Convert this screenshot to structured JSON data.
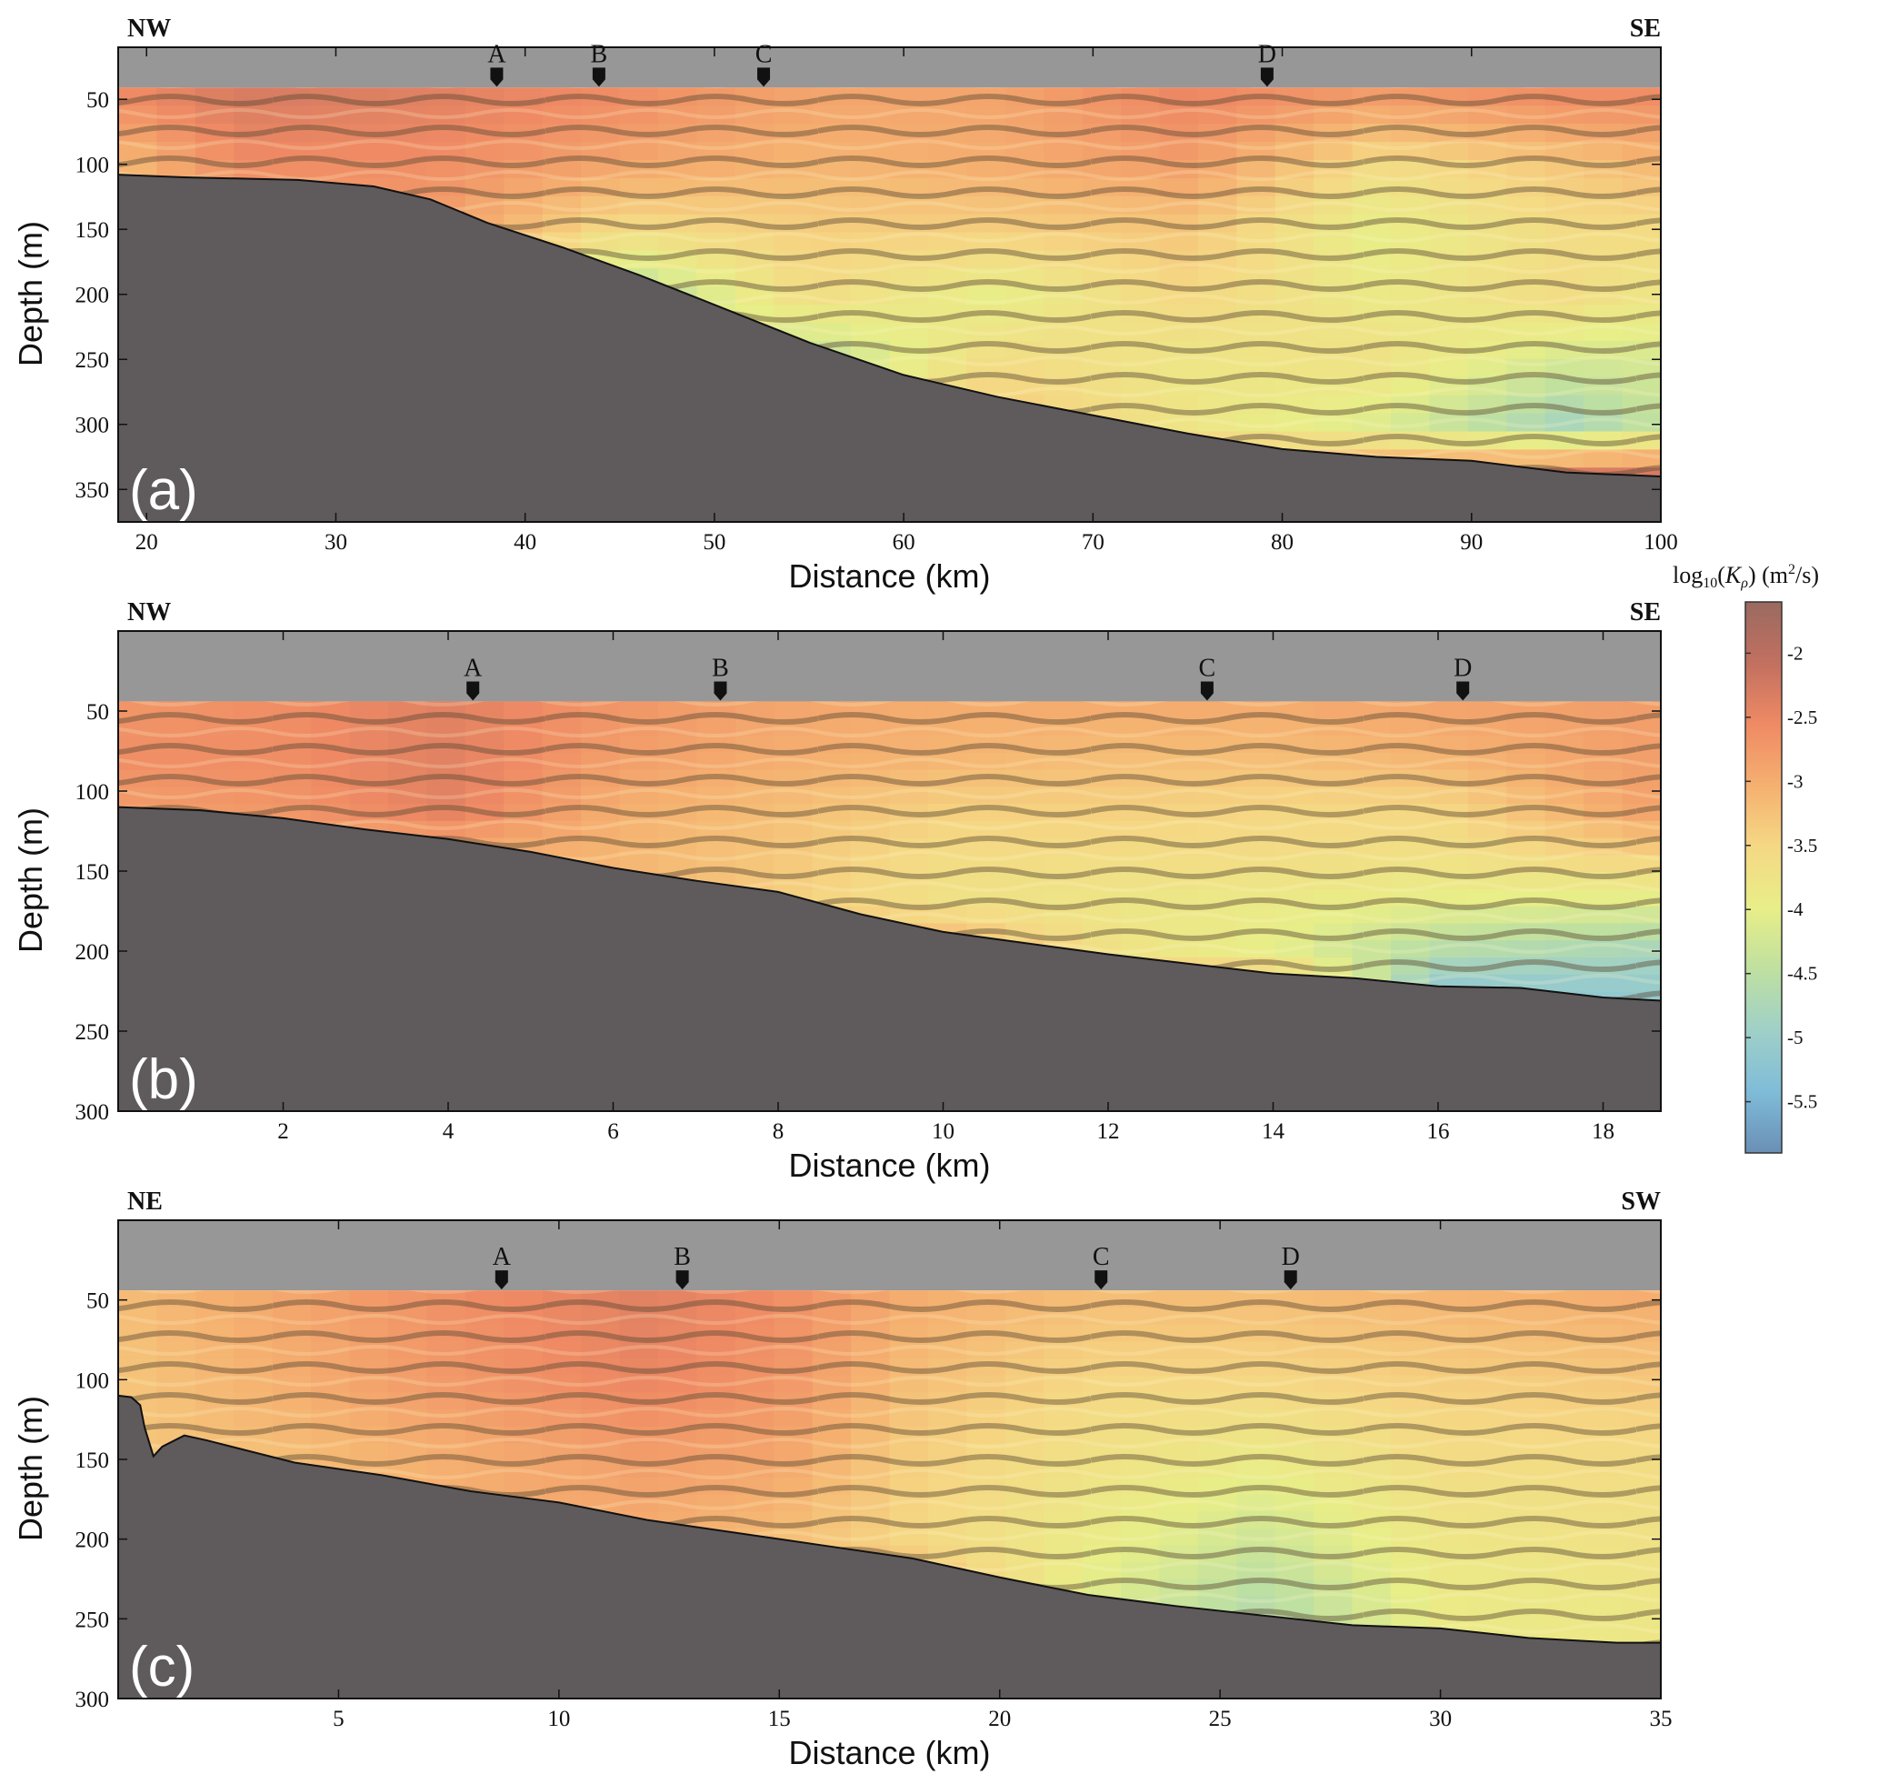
{
  "chart_data": [
    {
      "type": "heatmap",
      "panel_label": "(a)",
      "left_direction": "NW",
      "right_direction": "SE",
      "xlabel": "Distance (km)",
      "ylabel": "Depth (m)",
      "xlim": [
        18.5,
        100
      ],
      "ylim": [
        375,
        10
      ],
      "sea_top_depth": 41,
      "xticks": [
        20,
        30,
        40,
        50,
        60,
        70,
        80,
        90,
        100
      ],
      "yticks": [
        50,
        100,
        150,
        200,
        250,
        300,
        350
      ],
      "markers": [
        {
          "label": "A",
          "x": 38.5
        },
        {
          "label": "B",
          "x": 43.9
        },
        {
          "label": "C",
          "x": 52.6
        },
        {
          "label": "D",
          "x": 79.2
        }
      ],
      "seabed_depth": {
        "x": [
          18.5,
          22,
          28,
          32,
          35,
          38,
          42,
          46,
          50,
          55,
          60,
          65,
          70,
          75,
          80,
          85,
          90,
          95,
          100
        ],
        "y": [
          108,
          110,
          112,
          117,
          127,
          145,
          164,
          185,
          208,
          237,
          262,
          279,
          293,
          307,
          319,
          325,
          328,
          337,
          340
        ]
      },
      "log10_kp_field": {
        "x": [
          18.5,
          25,
          35,
          45,
          55,
          65,
          75,
          85,
          95,
          100
        ],
        "rows": [
          {
            "depth": 50,
            "values": [
              -2.6,
              -2.3,
              -2.4,
              -2.6,
              -2.9,
              -2.9,
              -2.5,
              -2.8,
              -2.6,
              -2.6
            ]
          },
          {
            "depth": 100,
            "values": [
              -3.2,
              -2.6,
              -2.6,
              -2.9,
              -3.1,
              -3.0,
              -2.8,
              -3.6,
              -3.3,
              -3.1
            ]
          },
          {
            "depth": 150,
            "values": [
              -3.0,
              -2.9,
              -2.8,
              -3.6,
              -3.4,
              -3.4,
              -3.3,
              -4.0,
              -3.6,
              -3.6
            ]
          },
          {
            "depth": 200,
            "values": [
              -3.0,
              -3.0,
              -3.0,
              -4.6,
              -3.6,
              -4.0,
              -3.5,
              -3.9,
              -3.6,
              -3.8
            ]
          },
          {
            "depth": 250,
            "values": [
              -3.0,
              -3.0,
              -3.0,
              -3.5,
              -4.5,
              -3.6,
              -3.8,
              -3.7,
              -4.2,
              -4.2
            ]
          },
          {
            "depth": 300,
            "values": [
              -3.0,
              -3.0,
              -3.0,
              -3.2,
              -3.5,
              -3.3,
              -3.8,
              -4.1,
              -4.8,
              -4.4
            ]
          },
          {
            "depth": 340,
            "values": [
              -3.0,
              -3.0,
              -3.0,
              -3.0,
              -3.0,
              -3.0,
              -3.0,
              -2.8,
              -2.3,
              -2.3
            ]
          }
        ]
      }
    },
    {
      "type": "heatmap",
      "panel_label": "(b)",
      "left_direction": "NW",
      "right_direction": "SE",
      "xlabel": "Distance (km)",
      "ylabel": "Depth (m)",
      "xlim": [
        0,
        18.7
      ],
      "ylim": [
        300,
        0
      ],
      "sea_top_depth": 44,
      "xticks": [
        2,
        4,
        6,
        8,
        10,
        12,
        14,
        16,
        18
      ],
      "yticks": [
        50,
        100,
        150,
        200,
        250,
        300
      ],
      "markers": [
        {
          "label": "A",
          "x": 4.3
        },
        {
          "label": "B",
          "x": 7.3
        },
        {
          "label": "C",
          "x": 13.2
        },
        {
          "label": "D",
          "x": 16.3
        }
      ],
      "seabed_depth": {
        "x": [
          0,
          1,
          2,
          3,
          4,
          5,
          6,
          7,
          8,
          9,
          10,
          11,
          12,
          13,
          14,
          15,
          16,
          17,
          18,
          18.7
        ],
        "y": [
          110,
          112,
          117,
          124,
          130,
          138,
          148,
          156,
          163,
          177,
          188,
          195,
          202,
          208,
          214,
          217,
          222,
          223,
          229,
          231
        ]
      },
      "log10_kp_field": {
        "x": [
          0,
          2,
          4,
          6,
          8,
          10,
          12,
          14,
          16,
          18.7
        ],
        "rows": [
          {
            "depth": 50,
            "values": [
              -2.7,
              -2.6,
              -2.4,
              -2.7,
              -2.9,
              -3.0,
              -3.0,
              -3.0,
              -2.9,
              -2.8
            ]
          },
          {
            "depth": 80,
            "values": [
              -2.6,
              -2.6,
              -2.4,
              -2.8,
              -3.0,
              -3.1,
              -3.2,
              -3.2,
              -3.1,
              -2.8
            ]
          },
          {
            "depth": 110,
            "values": [
              -2.8,
              -2.7,
              -2.4,
              -3.0,
              -3.2,
              -3.4,
              -3.4,
              -3.5,
              -3.5,
              -2.8
            ]
          },
          {
            "depth": 140,
            "values": [
              -3.0,
              -3.0,
              -3.0,
              -3.1,
              -3.3,
              -3.6,
              -3.6,
              -3.6,
              -3.7,
              -3.4
            ]
          },
          {
            "depth": 170,
            "values": [
              -3.0,
              -3.0,
              -3.0,
              -3.0,
              -3.4,
              -3.7,
              -3.8,
              -3.9,
              -4.0,
              -4.1
            ]
          },
          {
            "depth": 200,
            "values": [
              -3.0,
              -3.0,
              -3.0,
              -3.0,
              -3.0,
              -3.0,
              -3.7,
              -4.0,
              -4.6,
              -4.8
            ]
          },
          {
            "depth": 225,
            "values": [
              -3.0,
              -3.0,
              -3.0,
              -3.0,
              -3.0,
              -3.0,
              -3.0,
              -3.0,
              -5.2,
              -5.1
            ]
          }
        ]
      }
    },
    {
      "type": "heatmap",
      "panel_label": "(c)",
      "left_direction": "NE",
      "right_direction": "SW",
      "xlabel": "Distance (km)",
      "ylabel": "Depth (m)",
      "xlim": [
        0,
        35
      ],
      "ylim": [
        300,
        0
      ],
      "sea_top_depth": 44,
      "xticks": [
        5,
        10,
        15,
        20,
        25,
        30,
        35
      ],
      "yticks": [
        50,
        100,
        150,
        200,
        250,
        300
      ],
      "markers": [
        {
          "label": "A",
          "x": 8.7
        },
        {
          "label": "B",
          "x": 12.8
        },
        {
          "label": "C",
          "x": 22.3
        },
        {
          "label": "D",
          "x": 26.6
        }
      ],
      "seabed_depth": {
        "x": [
          0,
          0.3,
          0.5,
          0.6,
          0.8,
          1.0,
          1.5,
          2,
          4,
          6,
          8,
          10,
          12,
          14,
          16,
          18,
          20,
          22,
          24,
          26,
          28,
          30,
          32,
          34,
          35
        ],
        "y": [
          110,
          111,
          116,
          130,
          148,
          142,
          135,
          138,
          152,
          160,
          170,
          177,
          188,
          196,
          204,
          212,
          224,
          235,
          242,
          248,
          254,
          256,
          262,
          265,
          265
        ]
      },
      "log10_kp_field": {
        "x": [
          0,
          4,
          8,
          12,
          15,
          18,
          22,
          26,
          30,
          35
        ],
        "rows": [
          {
            "depth": 50,
            "values": [
              -3.2,
              -2.9,
              -2.6,
              -2.4,
              -2.6,
              -3.0,
              -3.2,
              -3.2,
              -3.1,
              -3.0
            ]
          },
          {
            "depth": 100,
            "values": [
              -3.3,
              -3.0,
              -2.7,
              -2.5,
              -2.7,
              -3.2,
              -3.5,
              -3.5,
              -3.4,
              -3.3
            ]
          },
          {
            "depth": 150,
            "values": [
              -3.3,
              -3.2,
              -3.0,
              -2.8,
              -2.9,
              -3.4,
              -3.7,
              -3.9,
              -3.6,
              -3.6
            ]
          },
          {
            "depth": 200,
            "values": [
              -3.0,
              -3.0,
              -3.0,
              -3.0,
              -3.2,
              -3.5,
              -3.9,
              -4.3,
              -3.8,
              -3.7
            ]
          },
          {
            "depth": 240,
            "values": [
              -3.0,
              -3.0,
              -3.0,
              -3.0,
              -3.0,
              -3.0,
              -4.1,
              -4.6,
              -3.9,
              -3.8
            ]
          }
        ]
      }
    }
  ],
  "colorbar": {
    "title_prefix": "log",
    "title_sub": "10",
    "title_var": "K",
    "title_var_sub": "ρ",
    "title_units": " (m",
    "title_units_sup": "2",
    "title_units_end": "/s)",
    "range": [
      -5.9,
      -1.6
    ],
    "ticks": [
      "-2",
      "-2.5",
      "-3",
      "-3.5",
      "-4",
      "-4.5",
      "-5",
      "-5.5"
    ],
    "tick_values": [
      -2,
      -2.5,
      -3,
      -3.5,
      -4,
      -4.5,
      -5,
      -5.5
    ],
    "colormap": [
      "#6a8fb5",
      "#7fbcd8",
      "#9fd0c8",
      "#bfe0a0",
      "#e8ee88",
      "#f5d884",
      "#f5b070",
      "#ef8a64",
      "#c27060",
      "#9a6a60"
    ]
  },
  "colors": {
    "seabed": "#5f5a5b",
    "sea_gap": "#979797",
    "band": "#5a4a34"
  }
}
